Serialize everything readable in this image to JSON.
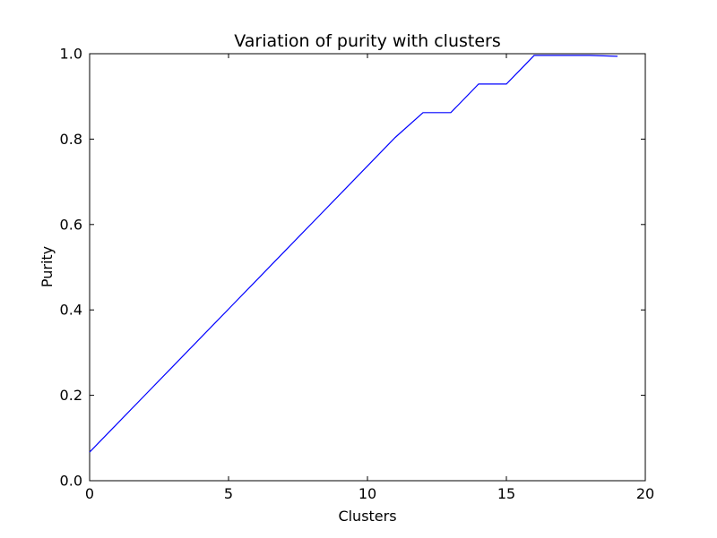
{
  "chart_data": {
    "type": "line",
    "title": "Variation of purity with clusters",
    "xlabel": "Clusters",
    "ylabel": "Purity",
    "xlim": [
      0,
      20
    ],
    "ylim": [
      0.0,
      1.0
    ],
    "xticks": [
      0,
      5,
      10,
      15,
      20
    ],
    "xtick_labels": [
      "0",
      "5",
      "10",
      "15",
      "20"
    ],
    "yticks": [
      0.0,
      0.2,
      0.4,
      0.6,
      0.8,
      1.0
    ],
    "ytick_labels": [
      "0.0",
      "0.2",
      "0.4",
      "0.6",
      "0.8",
      "1.0"
    ],
    "grid": false,
    "series": [
      {
        "color": "#0000ff",
        "x": [
          0,
          1,
          2,
          3,
          4,
          5,
          6,
          7,
          8,
          9,
          10,
          11,
          12,
          13,
          14,
          15,
          16,
          17,
          18,
          19
        ],
        "y": [
          0.067,
          0.134,
          0.201,
          0.268,
          0.335,
          0.402,
          0.469,
          0.536,
          0.603,
          0.67,
          0.737,
          0.804,
          0.862,
          0.862,
          0.929,
          0.929,
          0.996,
          0.996,
          0.996,
          0.994
        ]
      }
    ]
  }
}
